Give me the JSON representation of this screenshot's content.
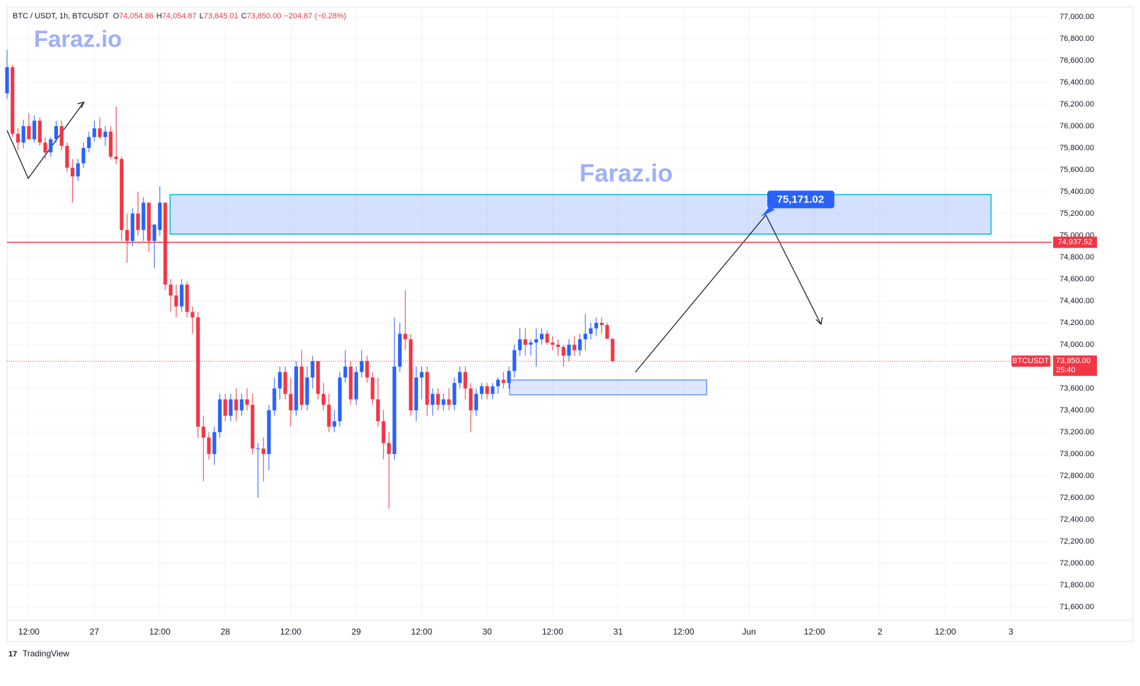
{
  "chart_data": {
    "type": "candlestick",
    "header": {
      "symbol": "BTC / USDT, 1h, BTCUSDT",
      "o_key": "O",
      "o": "74,054.86",
      "h_key": "H",
      "h": "74,054.87",
      "l_key": "L",
      "l": "73,845.01",
      "c_key": "C",
      "c": "73,850.00",
      "change": "−204.87 (−0.28%)"
    },
    "watermark": "Faraz.io",
    "brand": "TradingView",
    "up_color": "#2962ff",
    "down_color": "#f23645",
    "grid": true,
    "xlim": [
      8,
      199.5
    ],
    "ylim": [
      71477,
      77090
    ],
    "xticks": [
      {
        "value": 12,
        "label": "12:00"
      },
      {
        "value": 24,
        "label": "27"
      },
      {
        "value": 36,
        "label": "12:00"
      },
      {
        "value": 48,
        "label": "28"
      },
      {
        "value": 60,
        "label": "12:00"
      },
      {
        "value": 72,
        "label": "29"
      },
      {
        "value": 84,
        "label": "12:00"
      },
      {
        "value": 96,
        "label": "30"
      },
      {
        "value": 108,
        "label": "12:00"
      },
      {
        "value": 120,
        "label": "31"
      },
      {
        "value": 132,
        "label": "12:00"
      },
      {
        "value": 144,
        "label": "Jun"
      },
      {
        "value": 156,
        "label": "12:00"
      },
      {
        "value": 168,
        "label": "2"
      },
      {
        "value": 180,
        "label": "12:00"
      },
      {
        "value": 192,
        "label": "3"
      }
    ],
    "yticks": [
      {
        "value": 71600,
        "label": "71,600.00"
      },
      {
        "value": 71800,
        "label": "71,800.00"
      },
      {
        "value": 72000,
        "label": "72,000.00"
      },
      {
        "value": 72200,
        "label": "72,200.00"
      },
      {
        "value": 72400,
        "label": "72,400.00"
      },
      {
        "value": 72600,
        "label": "72,600.00"
      },
      {
        "value": 72800,
        "label": "72,800.00"
      },
      {
        "value": 73000,
        "label": "73,000.00"
      },
      {
        "value": 73200,
        "label": "73,200.00"
      },
      {
        "value": 73400,
        "label": "73,400.00"
      },
      {
        "value": 73600,
        "label": "73,600.00"
      },
      {
        "value": 73800,
        "label": "73,800.00"
      },
      {
        "value": 74000,
        "label": "74,000.00"
      },
      {
        "value": 74200,
        "label": "74,200.00"
      },
      {
        "value": 74400,
        "label": "74,400.00"
      },
      {
        "value": 74600,
        "label": "74,600.00"
      },
      {
        "value": 74800,
        "label": "74,800.00"
      },
      {
        "value": 75000,
        "label": "75,000.00"
      },
      {
        "value": 75200,
        "label": "75,200.00"
      },
      {
        "value": 75400,
        "label": "75,400.00"
      },
      {
        "value": 75600,
        "label": "75,600.00"
      },
      {
        "value": 75800,
        "label": "75,800.00"
      },
      {
        "value": 76000,
        "label": "76,000.00"
      },
      {
        "value": 76200,
        "label": "76,200.00"
      },
      {
        "value": 76400,
        "label": "76,400.00"
      },
      {
        "value": 76600,
        "label": "76,600.00"
      },
      {
        "value": 76800,
        "label": "76,800.00"
      },
      {
        "value": 77000,
        "label": "77,000.00"
      }
    ],
    "hline": {
      "value": 74937.52,
      "label": "74,937.52",
      "color": "#f23645"
    },
    "target": {
      "value": 75171.02,
      "label": "75,171.02"
    },
    "last_price": {
      "label": "73,850.00",
      "symbol_tag": "BTCUSDT",
      "countdown": "25:40"
    },
    "x": [
      8,
      9,
      10,
      11,
      12,
      13,
      14,
      15,
      16,
      17,
      18,
      19,
      20,
      21,
      22,
      23,
      24,
      25,
      26,
      27,
      28,
      29,
      30,
      31,
      32,
      33,
      34,
      35,
      36,
      37,
      38,
      39,
      40,
      41,
      42,
      43,
      44,
      45,
      46,
      47,
      48,
      49,
      50,
      51,
      52,
      53,
      54,
      55,
      56,
      57,
      58,
      59,
      60,
      61,
      62,
      63,
      64,
      65,
      66,
      67,
      68,
      69,
      70,
      71,
      72,
      73,
      74,
      75,
      76,
      77,
      78,
      79,
      80,
      81,
      82,
      83,
      84,
      85,
      86,
      87,
      88,
      89,
      90,
      91,
      92,
      93,
      94,
      95,
      96,
      97,
      98,
      99,
      100,
      101,
      102,
      103,
      104,
      105,
      106,
      107,
      108,
      109,
      110,
      111,
      112,
      113,
      114,
      115,
      116,
      117,
      118,
      119
    ],
    "ohlc": [
      [
        76300,
        76700,
        76250,
        76540
      ],
      [
        76540,
        76560,
        75900,
        75930
      ],
      [
        75930,
        75980,
        75780,
        75850
      ],
      [
        75850,
        76060,
        75800,
        76000
      ],
      [
        76000,
        76120,
        75900,
        75880
      ],
      [
        75880,
        76100,
        75850,
        76050
      ],
      [
        76050,
        76080,
        75820,
        75850
      ],
      [
        75850,
        75900,
        75700,
        75760
      ],
      [
        75760,
        75900,
        75720,
        75880
      ],
      [
        75880,
        76050,
        75850,
        76000
      ],
      [
        76000,
        76050,
        75780,
        75820
      ],
      [
        75820,
        75850,
        75580,
        75620
      ],
      [
        75620,
        75700,
        75300,
        75540
      ],
      [
        75540,
        75700,
        75500,
        75660
      ],
      [
        75660,
        75850,
        75620,
        75800
      ],
      [
        75800,
        75950,
        75760,
        75900
      ],
      [
        75900,
        76050,
        75860,
        75980
      ],
      [
        75980,
        76080,
        75880,
        75900
      ],
      [
        75900,
        76000,
        75820,
        75950
      ],
      [
        75950,
        76000,
        75700,
        75720
      ],
      [
        75720,
        76180,
        75650,
        75700
      ],
      [
        75700,
        75720,
        74950,
        75050
      ],
      [
        75050,
        75200,
        74750,
        74950
      ],
      [
        74950,
        75250,
        74900,
        75200
      ],
      [
        75200,
        75400,
        75000,
        75050
      ],
      [
        75050,
        75350,
        74950,
        75300
      ],
      [
        75300,
        75300,
        74850,
        74950
      ],
      [
        74950,
        75100,
        74700,
        75100
      ],
      [
        75050,
        75450,
        75000,
        75300
      ],
      [
        75300,
        75300,
        74500,
        74550
      ],
      [
        74550,
        74600,
        74300,
        74450
      ],
      [
        74450,
        74550,
        74250,
        74350
      ],
      [
        74350,
        74600,
        74300,
        74550
      ],
      [
        74550,
        74580,
        74250,
        74300
      ],
      [
        74300,
        74350,
        74100,
        74250
      ],
      [
        74250,
        74300,
        73150,
        73250
      ],
      [
        73250,
        73350,
        72750,
        73150
      ],
      [
        73150,
        73200,
        72950,
        73000
      ],
      [
        73000,
        73250,
        72900,
        73200
      ],
      [
        73200,
        73550,
        73150,
        73500
      ],
      [
        73500,
        73550,
        73300,
        73350
      ],
      [
        73350,
        73550,
        73300,
        73500
      ],
      [
        73500,
        73600,
        73300,
        73400
      ],
      [
        73400,
        73550,
        73350,
        73500
      ],
      [
        73500,
        73600,
        73400,
        73450
      ],
      [
        73450,
        73550,
        73000,
        73050
      ],
      [
        73050,
        73100,
        72600,
        73050
      ],
      [
        73050,
        73150,
        72750,
        73000
      ],
      [
        73000,
        73450,
        72850,
        73400
      ],
      [
        73400,
        73700,
        73350,
        73600
      ],
      [
        73600,
        73800,
        73500,
        73750
      ],
      [
        73750,
        73800,
        73500,
        73550
      ],
      [
        73550,
        73700,
        73250,
        73400
      ],
      [
        73400,
        73850,
        73350,
        73800
      ],
      [
        73800,
        73950,
        73400,
        73450
      ],
      [
        73450,
        73800,
        73400,
        73700
      ],
      [
        73700,
        73900,
        73600,
        73850
      ],
      [
        73850,
        73850,
        73500,
        73550
      ],
      [
        73550,
        73650,
        73400,
        73450
      ],
      [
        73450,
        73550,
        73200,
        73250
      ],
      [
        73250,
        73400,
        73200,
        73300
      ],
      [
        73300,
        73750,
        73250,
        73700
      ],
      [
        73700,
        73950,
        73650,
        73800
      ],
      [
        73800,
        73850,
        73450,
        73500
      ],
      [
        73500,
        73800,
        73450,
        73750
      ],
      [
        73750,
        73950,
        73700,
        73850
      ],
      [
        73850,
        73900,
        73650,
        73700
      ],
      [
        73700,
        73750,
        73450,
        73500
      ],
      [
        73500,
        73700,
        73250,
        73300
      ],
      [
        73300,
        73400,
        72950,
        73100
      ],
      [
        73100,
        73200,
        72500,
        73000
      ],
      [
        73000,
        74250,
        72950,
        73800
      ],
      [
        73800,
        74200,
        73750,
        74100
      ],
      [
        74100,
        74500,
        73950,
        74050
      ],
      [
        74050,
        74100,
        73350,
        73400
      ],
      [
        73400,
        73800,
        73300,
        73700
      ],
      [
        73700,
        73800,
        73500,
        73750
      ],
      [
        73750,
        73800,
        73350,
        73450
      ],
      [
        73450,
        73600,
        73350,
        73550
      ],
      [
        73550,
        73600,
        73400,
        73450
      ],
      [
        73450,
        73550,
        73400,
        73500
      ],
      [
        73500,
        73600,
        73400,
        73450
      ],
      [
        73450,
        73700,
        73400,
        73650
      ],
      [
        73650,
        73800,
        73600,
        73750
      ],
      [
        73750,
        73800,
        73500,
        73600
      ],
      [
        73600,
        73650,
        73200,
        73400
      ],
      [
        73400,
        73600,
        73350,
        73550
      ],
      [
        73550,
        73650,
        73500,
        73620
      ],
      [
        73620,
        73650,
        73500,
        73550
      ],
      [
        73550,
        73650,
        73500,
        73620
      ],
      [
        73620,
        73700,
        73550,
        73680
      ],
      [
        73680,
        73750,
        73600,
        73650
      ],
      [
        73650,
        73800,
        73600,
        73760
      ],
      [
        73760,
        74000,
        73700,
        73950
      ],
      [
        73950,
        74150,
        73900,
        74050
      ],
      [
        74050,
        74150,
        73900,
        74000
      ],
      [
        74000,
        74050,
        73900,
        74020
      ],
      [
        74020,
        74150,
        73800,
        74050
      ],
      [
        74050,
        74150,
        74000,
        74100
      ],
      [
        74100,
        74130,
        74000,
        74020
      ],
      [
        74020,
        74080,
        73950,
        74000
      ],
      [
        74000,
        74050,
        73900,
        73980
      ],
      [
        73980,
        74000,
        73800,
        73900
      ],
      [
        73900,
        74050,
        73850,
        74000
      ],
      [
        74000,
        74080,
        73900,
        73950
      ],
      [
        73950,
        74100,
        73900,
        74050
      ],
      [
        74050,
        74280,
        73950,
        74100
      ],
      [
        74100,
        74200,
        74050,
        74150
      ],
      [
        74150,
        74250,
        74080,
        74200
      ],
      [
        74200,
        74250,
        74100,
        74180
      ],
      [
        74180,
        74200,
        74050,
        74055
      ],
      [
        74054.86,
        74054.87,
        73845.01,
        73850
      ]
    ]
  }
}
